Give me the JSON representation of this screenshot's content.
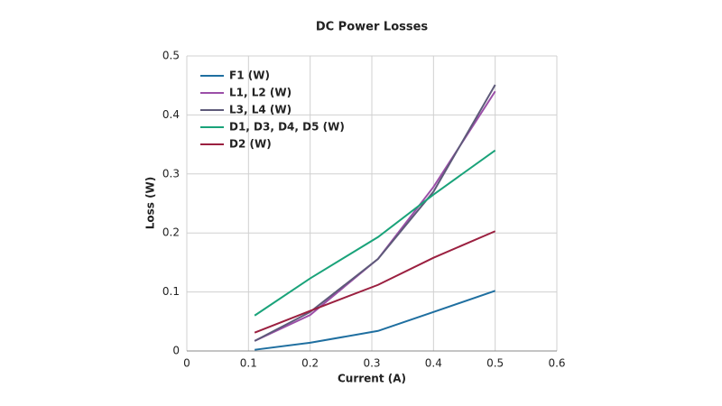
{
  "chart_data": {
    "type": "line",
    "title": "DC Power Losses",
    "x_label": "Current (A)",
    "y_label": "Loss (W)",
    "x": [
      0.11,
      0.2,
      0.31,
      0.4,
      0.5
    ],
    "series": [
      {
        "name": "F1 (W)",
        "color": "#1f6fa0",
        "values": [
          0.002,
          0.014,
          0.034,
          0.066,
          0.102
        ]
      },
      {
        "name": "L1, L2 (W)",
        "color": "#9b4fa8",
        "values": [
          0.017,
          0.061,
          0.156,
          0.278,
          0.44
        ]
      },
      {
        "name": "L3, L4 (W)",
        "color": "#5e5a7a",
        "values": [
          0.017,
          0.066,
          0.156,
          0.27,
          0.451
        ]
      },
      {
        "name": "D1, D3, D4, D5 (W)",
        "color": "#1aa37a",
        "values": [
          0.06,
          0.123,
          0.193,
          0.265,
          0.34
        ]
      },
      {
        "name": "D2 (W)",
        "color": "#9b2040",
        "values": [
          0.031,
          0.068,
          0.112,
          0.158,
          0.203
        ]
      }
    ],
    "xlim": [
      0,
      0.6
    ],
    "xticks": [
      0,
      0.1,
      0.2,
      0.3,
      0.4,
      0.5,
      0.6
    ],
    "ylim": [
      0,
      0.5
    ],
    "yticks": [
      0,
      0.1,
      0.2,
      0.3,
      0.4,
      0.5
    ],
    "grid": true,
    "legend_position": "upper-left"
  }
}
